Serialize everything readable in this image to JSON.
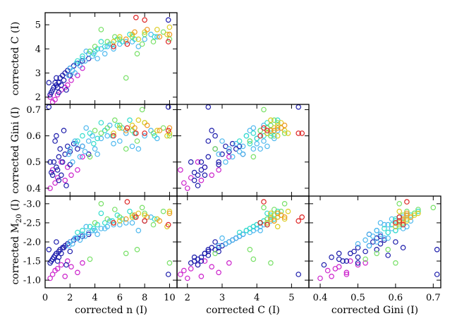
{
  "chart_data": {
    "type": "scatter",
    "title": "",
    "variables": {
      "n": {
        "label": "corrected n (I)",
        "range": [
          0,
          10.6
        ],
        "ticks": [
          0,
          2,
          4,
          6,
          8,
          10
        ],
        "tick_labels": [
          "0",
          "2",
          "4",
          "6",
          "8",
          "10"
        ]
      },
      "C": {
        "label": "corrected C (I)",
        "range": [
          1.7,
          5.5
        ],
        "ticks": [
          2,
          3,
          4,
          5
        ],
        "tick_labels": [
          "2",
          "3",
          "4",
          "5"
        ]
      },
      "Gini": {
        "label": "corrected Gini (I)",
        "range": [
          0.37,
          0.72
        ],
        "ticks": [
          0.4,
          0.5,
          0.6,
          0.7
        ],
        "tick_labels": [
          "0.4",
          "0.5",
          "0.6",
          "0.7"
        ]
      },
      "M20": {
        "label": "corrected M",
        "label_subscript": "20",
        "label_suffix": " (I)",
        "range": [
          -0.8,
          -3.2
        ],
        "ticks": [
          -1.0,
          -1.5,
          -2.0,
          -2.5,
          -3.0
        ],
        "tick_labels": [
          "-1.0",
          "-1.5",
          "-2.0",
          "-2.5",
          "-3.0"
        ]
      }
    },
    "panels": [
      {
        "id": "n-vs-C",
        "x": "n",
        "y": "C"
      },
      {
        "id": "n-vs-Gini",
        "x": "n",
        "y": "Gini"
      },
      {
        "id": "C-vs-Gini",
        "x": "C",
        "y": "Gini"
      },
      {
        "id": "n-vs-M20",
        "x": "n",
        "y": "M20"
      },
      {
        "id": "C-vs-M20",
        "x": "C",
        "y": "M20"
      },
      {
        "id": "Gini-vs-M20",
        "x": "Gini",
        "y": "M20"
      }
    ],
    "color_groups": [
      {
        "name": "magenta",
        "color": "#cc22cc"
      },
      {
        "name": "dark-blue",
        "color": "#1a1aaa"
      },
      {
        "name": "light-blue",
        "color": "#4db8ee"
      },
      {
        "name": "cyan",
        "color": "#33ddcc"
      },
      {
        "name": "green",
        "color": "#77e066"
      },
      {
        "name": "yellow",
        "color": "#ddcc22"
      },
      {
        "name": "orange",
        "color": "#ee9922"
      },
      {
        "name": "red",
        "color": "#dd2222"
      }
    ],
    "galaxies": [
      {
        "n": 0.8,
        "C": 1.9,
        "Gini": 0.42,
        "M20": -1.25,
        "group": "magenta"
      },
      {
        "n": 1.0,
        "C": 2.1,
        "Gini": 0.44,
        "M20": -1.3,
        "group": "magenta"
      },
      {
        "n": 0.6,
        "C": 1.8,
        "Gini": 0.47,
        "M20": -1.15,
        "group": "magenta"
      },
      {
        "n": 1.6,
        "C": 2.4,
        "Gini": 0.43,
        "M20": -1.1,
        "group": "magenta"
      },
      {
        "n": 2.6,
        "C": 2.9,
        "Gini": 0.47,
        "M20": -1.2,
        "group": "magenta"
      },
      {
        "n": 2.1,
        "C": 2.7,
        "Gini": 0.45,
        "M20": -1.35,
        "group": "magenta"
      },
      {
        "n": 1.3,
        "C": 2.3,
        "Gini": 0.5,
        "M20": -1.4,
        "group": "magenta"
      },
      {
        "n": 3.0,
        "C": 3.2,
        "Gini": 0.52,
        "M20": -1.45,
        "group": "magenta"
      },
      {
        "n": 0.4,
        "C": 2.0,
        "Gini": 0.4,
        "M20": -1.05,
        "group": "magenta"
      },
      {
        "n": 1.8,
        "C": 2.5,
        "Gini": 0.48,
        "M20": -1.5,
        "group": "magenta"
      },
      {
        "n": 0.5,
        "C": 2.2,
        "Gini": 0.46,
        "M20": -1.5,
        "group": "dark-blue"
      },
      {
        "n": 0.7,
        "C": 2.4,
        "Gini": 0.5,
        "M20": -1.6,
        "group": "dark-blue"
      },
      {
        "n": 0.9,
        "C": 2.5,
        "Gini": 0.48,
        "M20": -1.7,
        "group": "dark-blue"
      },
      {
        "n": 1.1,
        "C": 2.6,
        "Gini": 0.52,
        "M20": -1.75,
        "group": "dark-blue"
      },
      {
        "n": 1.2,
        "C": 2.8,
        "Gini": 0.55,
        "M20": -1.8,
        "group": "dark-blue"
      },
      {
        "n": 1.4,
        "C": 2.9,
        "Gini": 0.5,
        "M20": -1.85,
        "group": "dark-blue"
      },
      {
        "n": 0.6,
        "C": 2.3,
        "Gini": 0.45,
        "M20": -1.55,
        "group": "dark-blue"
      },
      {
        "n": 1.6,
        "C": 3.0,
        "Gini": 0.53,
        "M20": -1.9,
        "group": "dark-blue"
      },
      {
        "n": 1.8,
        "C": 3.1,
        "Gini": 0.56,
        "M20": -1.95,
        "group": "dark-blue"
      },
      {
        "n": 2.0,
        "C": 3.2,
        "Gini": 0.54,
        "M20": -2.0,
        "group": "dark-blue"
      },
      {
        "n": 0.8,
        "C": 2.6,
        "Gini": 0.58,
        "M20": -1.65,
        "group": "dark-blue"
      },
      {
        "n": 1.0,
        "C": 2.4,
        "Gini": 0.47,
        "M20": -1.5,
        "group": "dark-blue"
      },
      {
        "n": 2.3,
        "C": 3.3,
        "Gini": 0.57,
        "M20": -2.05,
        "group": "dark-blue"
      },
      {
        "n": 2.6,
        "C": 3.4,
        "Gini": 0.55,
        "M20": -2.1,
        "group": "dark-blue"
      },
      {
        "n": 0.4,
        "C": 2.1,
        "Gini": 0.5,
        "M20": -1.45,
        "group": "dark-blue"
      },
      {
        "n": 1.5,
        "C": 2.7,
        "Gini": 0.62,
        "M20": -1.85,
        "group": "dark-blue"
      },
      {
        "n": 1.3,
        "C": 2.5,
        "Gini": 0.45,
        "M20": -1.7,
        "group": "dark-blue"
      },
      {
        "n": 3.0,
        "C": 3.5,
        "Gini": 0.56,
        "M20": -2.15,
        "group": "dark-blue"
      },
      {
        "n": 0.3,
        "C": 2.6,
        "Gini": 0.71,
        "M20": -1.8,
        "group": "dark-blue"
      },
      {
        "n": 2.0,
        "C": 2.9,
        "Gini": 0.49,
        "M20": -1.75,
        "group": "dark-blue"
      },
      {
        "n": 1.1,
        "C": 2.2,
        "Gini": 0.43,
        "M20": -1.6,
        "group": "dark-blue"
      },
      {
        "n": 3.5,
        "C": 3.6,
        "Gini": 0.53,
        "M20": -2.2,
        "group": "dark-blue"
      },
      {
        "n": 0.9,
        "C": 2.8,
        "Gini": 0.6,
        "M20": -2.0,
        "group": "dark-blue"
      },
      {
        "n": 9.9,
        "C": 5.2,
        "Gini": 0.71,
        "M20": -1.15,
        "group": "dark-blue"
      },
      {
        "n": 1.7,
        "C": 2.3,
        "Gini": 0.41,
        "M20": -1.4,
        "group": "dark-blue"
      },
      {
        "n": 2.0,
        "C": 3.2,
        "Gini": 0.55,
        "M20": -2.0,
        "group": "light-blue"
      },
      {
        "n": 2.5,
        "C": 3.4,
        "Gini": 0.57,
        "M20": -2.1,
        "group": "light-blue"
      },
      {
        "n": 3.0,
        "C": 3.6,
        "Gini": 0.56,
        "M20": -2.2,
        "group": "light-blue"
      },
      {
        "n": 3.5,
        "C": 3.8,
        "Gini": 0.58,
        "M20": -2.25,
        "group": "light-blue"
      },
      {
        "n": 4.0,
        "C": 3.9,
        "Gini": 0.55,
        "M20": -2.3,
        "group": "light-blue"
      },
      {
        "n": 4.5,
        "C": 4.0,
        "Gini": 0.59,
        "M20": -2.35,
        "group": "light-blue"
      },
      {
        "n": 5.0,
        "C": 4.1,
        "Gini": 0.6,
        "M20": -2.4,
        "group": "light-blue"
      },
      {
        "n": 6.0,
        "C": 4.2,
        "Gini": 0.58,
        "M20": -2.45,
        "group": "light-blue"
      },
      {
        "n": 7.0,
        "C": 4.3,
        "Gini": 0.56,
        "M20": -2.5,
        "group": "light-blue"
      },
      {
        "n": 8.0,
        "C": 4.4,
        "Gini": 0.6,
        "M20": -2.55,
        "group": "light-blue"
      },
      {
        "n": 2.8,
        "C": 3.3,
        "Gini": 0.52,
        "M20": -2.05,
        "group": "light-blue"
      },
      {
        "n": 3.2,
        "C": 3.5,
        "Gini": 0.54,
        "M20": -2.15,
        "group": "light-blue"
      },
      {
        "n": 3.8,
        "C": 3.7,
        "Gini": 0.6,
        "M20": -2.3,
        "group": "light-blue"
      },
      {
        "n": 4.2,
        "C": 3.6,
        "Gini": 0.53,
        "M20": -2.2,
        "group": "light-blue"
      },
      {
        "n": 5.5,
        "C": 4.0,
        "Gini": 0.57,
        "M20": -2.45,
        "group": "light-blue"
      },
      {
        "n": 6.5,
        "C": 4.3,
        "Gini": 0.61,
        "M20": -2.5,
        "group": "light-blue"
      },
      {
        "n": 9.0,
        "C": 4.5,
        "Gini": 0.59,
        "M20": -2.6,
        "group": "light-blue"
      },
      {
        "n": 2.2,
        "C": 3.1,
        "Gini": 0.5,
        "M20": -1.95,
        "group": "light-blue"
      },
      {
        "n": 4.8,
        "C": 3.8,
        "Gini": 0.62,
        "M20": -2.35,
        "group": "light-blue"
      },
      {
        "n": 3.3,
        "C": 3.9,
        "Gini": 0.63,
        "M20": -2.4,
        "group": "light-blue"
      },
      {
        "n": 7.5,
        "C": 4.1,
        "Gini": 0.55,
        "M20": -2.3,
        "group": "light-blue"
      },
      {
        "n": 2.4,
        "C": 3.0,
        "Gini": 0.58,
        "M20": -2.1,
        "group": "light-blue"
      },
      {
        "n": 5.2,
        "C": 4.2,
        "Gini": 0.64,
        "M20": -2.55,
        "group": "light-blue"
      },
      {
        "n": 1.9,
        "C": 2.9,
        "Gini": 0.53,
        "M20": -1.9,
        "group": "light-blue"
      },
      {
        "n": 8.5,
        "C": 4.6,
        "Gini": 0.62,
        "M20": -2.65,
        "group": "light-blue"
      },
      {
        "n": 3.0,
        "C": 3.7,
        "Gini": 0.6,
        "M20": -2.3,
        "group": "cyan"
      },
      {
        "n": 3.6,
        "C": 3.9,
        "Gini": 0.61,
        "M20": -2.4,
        "group": "cyan"
      },
      {
        "n": 4.2,
        "C": 4.0,
        "Gini": 0.59,
        "M20": -2.45,
        "group": "cyan"
      },
      {
        "n": 4.8,
        "C": 4.1,
        "Gini": 0.62,
        "M20": -2.5,
        "group": "cyan"
      },
      {
        "n": 5.4,
        "C": 4.2,
        "Gini": 0.6,
        "M20": -2.55,
        "group": "cyan"
      },
      {
        "n": 6.2,
        "C": 4.3,
        "Gini": 0.63,
        "M20": -2.6,
        "group": "cyan"
      },
      {
        "n": 7.2,
        "C": 4.4,
        "Gini": 0.61,
        "M20": -2.65,
        "group": "cyan"
      },
      {
        "n": 2.6,
        "C": 3.5,
        "Gini": 0.58,
        "M20": -2.25,
        "group": "cyan"
      },
      {
        "n": 3.9,
        "C": 3.8,
        "Gini": 0.57,
        "M20": -2.35,
        "group": "cyan"
      },
      {
        "n": 5.8,
        "C": 4.4,
        "Gini": 0.64,
        "M20": -2.7,
        "group": "cyan"
      },
      {
        "n": 8.8,
        "C": 4.5,
        "Gini": 0.6,
        "M20": -2.6,
        "group": "cyan"
      },
      {
        "n": 4.5,
        "C": 4.3,
        "Gini": 0.65,
        "M20": -2.75,
        "group": "cyan"
      },
      {
        "n": 6.8,
        "C": 4.6,
        "Gini": 0.66,
        "M20": -2.8,
        "group": "cyan"
      },
      {
        "n": 4.0,
        "C": 4.1,
        "Gini": 0.62,
        "M20": -2.5,
        "group": "green"
      },
      {
        "n": 5.0,
        "C": 4.3,
        "Gini": 0.63,
        "M20": -2.6,
        "group": "green"
      },
      {
        "n": 6.0,
        "C": 4.4,
        "Gini": 0.64,
        "M20": -2.65,
        "group": "green"
      },
      {
        "n": 7.0,
        "C": 4.5,
        "Gini": 0.62,
        "M20": -2.7,
        "group": "green"
      },
      {
        "n": 8.0,
        "C": 4.6,
        "Gini": 0.65,
        "M20": -2.75,
        "group": "green"
      },
      {
        "n": 9.5,
        "C": 4.7,
        "Gini": 0.63,
        "M20": -2.8,
        "group": "green"
      },
      {
        "n": 6.5,
        "C": 2.8,
        "Gini": 0.55,
        "M20": -1.7,
        "group": "green"
      },
      {
        "n": 7.8,
        "C": 4.2,
        "Gini": 0.7,
        "M20": -2.9,
        "group": "green"
      },
      {
        "n": 4.5,
        "C": 4.8,
        "Gini": 0.61,
        "M20": -3.0,
        "group": "green"
      },
      {
        "n": 10.0,
        "C": 4.4,
        "Gini": 0.6,
        "M20": -1.45,
        "group": "green"
      },
      {
        "n": 7.4,
        "C": 3.8,
        "Gini": 0.58,
        "M20": -1.8,
        "group": "green"
      },
      {
        "n": 5.6,
        "C": 4.5,
        "Gini": 0.66,
        "M20": -2.85,
        "group": "green"
      },
      {
        "n": 8.7,
        "C": 4.3,
        "Gini": 0.61,
        "M20": -2.45,
        "group": "green"
      },
      {
        "n": 3.6,
        "C": 3.9,
        "Gini": 0.52,
        "M20": -1.55,
        "group": "green"
      },
      {
        "n": 6.0,
        "C": 4.5,
        "Gini": 0.63,
        "M20": -2.55,
        "group": "yellow"
      },
      {
        "n": 7.0,
        "C": 4.6,
        "Gini": 0.64,
        "M20": -2.65,
        "group": "yellow"
      },
      {
        "n": 8.0,
        "C": 4.7,
        "Gini": 0.65,
        "M20": -2.7,
        "group": "yellow"
      },
      {
        "n": 9.0,
        "C": 4.8,
        "Gini": 0.62,
        "M20": -2.6,
        "group": "yellow"
      },
      {
        "n": 10.0,
        "C": 4.9,
        "Gini": 0.61,
        "M20": -2.8,
        "group": "yellow"
      },
      {
        "n": 7.5,
        "C": 4.4,
        "Gini": 0.66,
        "M20": -2.75,
        "group": "yellow"
      },
      {
        "n": 9.8,
        "C": 4.6,
        "Gini": 0.6,
        "M20": -2.4,
        "group": "yellow"
      },
      {
        "n": 5.5,
        "C": 4.3,
        "Gini": 0.61,
        "M20": -2.5,
        "group": "yellow"
      },
      {
        "n": 6.5,
        "C": 4.4,
        "Gini": 0.62,
        "M20": -2.6,
        "group": "orange"
      },
      {
        "n": 7.2,
        "C": 4.7,
        "Gini": 0.63,
        "M20": -2.7,
        "group": "orange"
      },
      {
        "n": 8.2,
        "C": 4.8,
        "Gini": 0.64,
        "M20": -2.65,
        "group": "orange"
      },
      {
        "n": 9.2,
        "C": 4.5,
        "Gini": 0.62,
        "M20": -2.55,
        "group": "orange"
      },
      {
        "n": 10.0,
        "C": 4.6,
        "Gini": 0.63,
        "M20": -2.75,
        "group": "orange"
      },
      {
        "n": 7.3,
        "C": 5.3,
        "Gini": 0.61,
        "M20": -2.65,
        "group": "red"
      },
      {
        "n": 5.5,
        "C": 4.1,
        "Gini": 0.6,
        "M20": -2.5,
        "group": "red"
      },
      {
        "n": 6.6,
        "C": 4.2,
        "Gini": 0.63,
        "M20": -3.05,
        "group": "red"
      },
      {
        "n": 9.9,
        "C": 4.3,
        "Gini": 0.62,
        "M20": -2.45,
        "group": "red"
      },
      {
        "n": 8.0,
        "C": 5.2,
        "Gini": 0.61,
        "M20": -2.55,
        "group": "red"
      }
    ]
  }
}
